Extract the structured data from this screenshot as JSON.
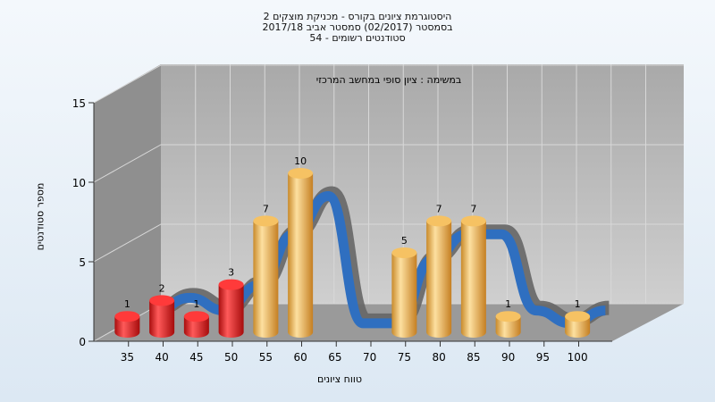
{
  "chart_data": {
    "type": "bar",
    "title_lines": [
      "היסטוגרמת ציונים בקורס - מכניקת מוצקים 2",
      "בסמסטר  (02/2017)  סמסטר אביב 2017/18",
      "סטודנטים רשומים - 54"
    ],
    "subtitle": "במשימה : ציון סופי במחשב המרכזי",
    "xlabel": "טווח ציונים",
    "ylabel": "מספר סטודנטים",
    "categories": [
      "35",
      "40",
      "45",
      "50",
      "55",
      "60",
      "65",
      "70",
      "75",
      "80",
      "85",
      "90",
      "95",
      "100"
    ],
    "values": [
      1,
      2,
      1,
      3,
      7,
      10,
      0,
      0,
      5,
      7,
      7,
      1,
      0,
      1
    ],
    "bar_colors": [
      "red",
      "red",
      "red",
      "red",
      "orange",
      "orange",
      "orange",
      "orange",
      "orange",
      "orange",
      "orange",
      "orange",
      "orange",
      "orange"
    ],
    "y_ticks": [
      0,
      5,
      10,
      15
    ],
    "ylim": [
      0,
      15
    ],
    "colors": {
      "fail": "#e01c1c",
      "pass": "#f0b040",
      "curve": "#2f6fc0",
      "curve_back": "#666666"
    }
  }
}
